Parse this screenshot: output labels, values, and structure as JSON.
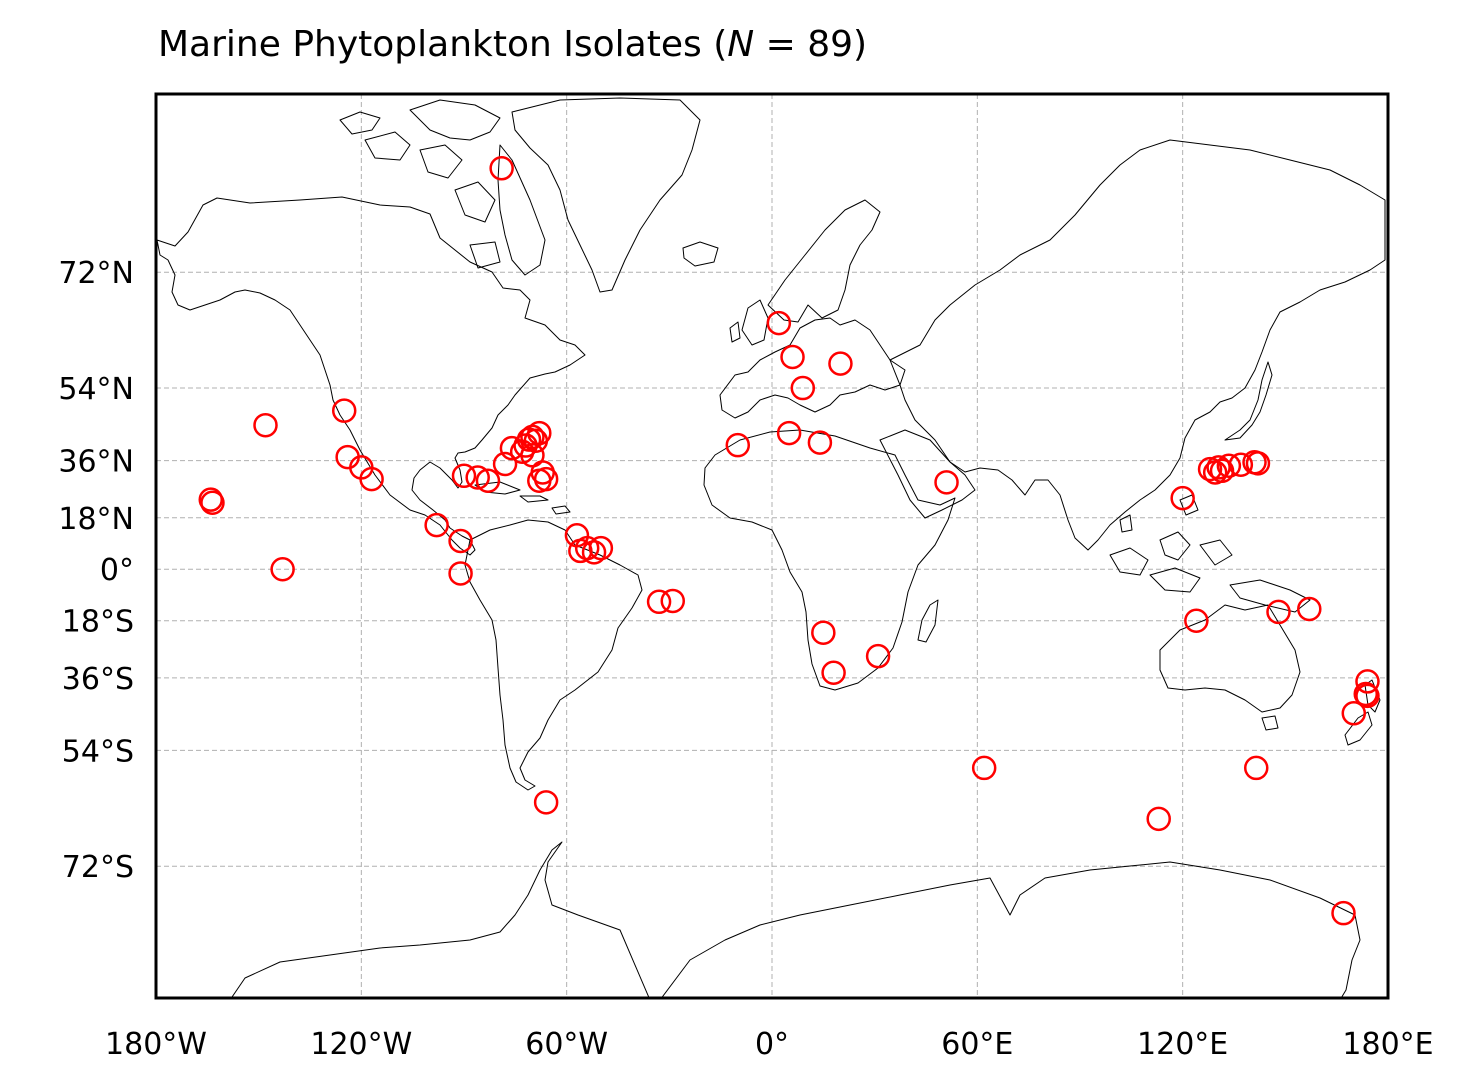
{
  "title": {
    "prefix": "Marine Phytoplankton Isolates (",
    "n_symbol": "N",
    "n_relation": " = 89)"
  },
  "chart_data": {
    "type": "scatter",
    "projection": "Mercator",
    "marker": "hollow circle",
    "marker_color": "#ff0000",
    "grid": true,
    "xlim": [
      -180,
      180
    ],
    "ylim": [
      -82,
      84
    ],
    "x_ticks": [
      -180,
      -120,
      -60,
      0,
      60,
      120,
      180
    ],
    "x_tick_labels": [
      "180°W",
      "120°W",
      "60°W",
      "0°",
      "60°E",
      "120°E",
      "180°E"
    ],
    "y_ticks": [
      72,
      54,
      36,
      18,
      0,
      -18,
      -36,
      -54,
      -72
    ],
    "y_tick_labels": [
      "72°N",
      "54°N",
      "36°N",
      "18°N",
      "0°",
      "18°S",
      "36°S",
      "54°S",
      "72°S"
    ],
    "points": [
      {
        "lon": -79,
        "lat": 80.5
      },
      {
        "lon": 2,
        "lat": 65.5
      },
      {
        "lon": 6,
        "lat": 60
      },
      {
        "lon": 9,
        "lat": 54
      },
      {
        "lon": 20,
        "lat": 58.8
      },
      {
        "lon": -125,
        "lat": 49
      },
      {
        "lon": -148,
        "lat": 45.5
      },
      {
        "lon": -124,
        "lat": 37
      },
      {
        "lon": -120,
        "lat": 34
      },
      {
        "lon": -117,
        "lat": 30.5
      },
      {
        "lon": -164,
        "lat": 24
      },
      {
        "lon": -163.5,
        "lat": 23
      },
      {
        "lon": -143,
        "lat": 0
      },
      {
        "lon": -90,
        "lat": 31.5
      },
      {
        "lon": -86,
        "lat": 31
      },
      {
        "lon": -83,
        "lat": 30
      },
      {
        "lon": -78,
        "lat": 35
      },
      {
        "lon": -76,
        "lat": 39.5
      },
      {
        "lon": -73,
        "lat": 38.5
      },
      {
        "lon": -72,
        "lat": 40.2
      },
      {
        "lon": -71,
        "lat": 41.8
      },
      {
        "lon": -70,
        "lat": 42.5
      },
      {
        "lon": -69,
        "lat": 41.5
      },
      {
        "lon": -68,
        "lat": 43.5
      },
      {
        "lon": -70,
        "lat": 37.5
      },
      {
        "lon": -67,
        "lat": 32.5
      },
      {
        "lon": -68,
        "lat": 30
      },
      {
        "lon": -66,
        "lat": 30.5
      },
      {
        "lon": -98,
        "lat": 15.5
      },
      {
        "lon": -91,
        "lat": 10
      },
      {
        "lon": -91,
        "lat": -1.5
      },
      {
        "lon": -57,
        "lat": 12
      },
      {
        "lon": -56,
        "lat": 6.5
      },
      {
        "lon": -54,
        "lat": 7.5
      },
      {
        "lon": -52,
        "lat": 6
      },
      {
        "lon": -50,
        "lat": 7.5
      },
      {
        "lon": -33,
        "lat": -11.5
      },
      {
        "lon": -29,
        "lat": -11.2
      },
      {
        "lon": -66,
        "lat": -63.5
      },
      {
        "lon": -10,
        "lat": 40.3
      },
      {
        "lon": 5,
        "lat": 43.5
      },
      {
        "lon": 14,
        "lat": 41
      },
      {
        "lon": 15,
        "lat": -22
      },
      {
        "lon": 18,
        "lat": -34.5
      },
      {
        "lon": 31,
        "lat": -29.5
      },
      {
        "lon": 51,
        "lat": 29.5
      },
      {
        "lon": 62,
        "lat": -57.5
      },
      {
        "lon": 120,
        "lat": 24.5
      },
      {
        "lon": 128,
        "lat": 33.5
      },
      {
        "lon": 129.5,
        "lat": 32.5
      },
      {
        "lon": 130.5,
        "lat": 34
      },
      {
        "lon": 131.5,
        "lat": 33
      },
      {
        "lon": 133.5,
        "lat": 34.5
      },
      {
        "lon": 137,
        "lat": 34.8
      },
      {
        "lon": 141,
        "lat": 35.5
      },
      {
        "lon": 142,
        "lat": 35.2
      },
      {
        "lon": 124,
        "lat": -18
      },
      {
        "lon": 148,
        "lat": -15
      },
      {
        "lon": 157,
        "lat": -14
      },
      {
        "lon": 113,
        "lat": -66
      },
      {
        "lon": 141.5,
        "lat": -57.5
      },
      {
        "lon": 174,
        "lat": -37
      },
      {
        "lon": 173.5,
        "lat": -40.5
      },
      {
        "lon": 174,
        "lat": -41
      },
      {
        "lon": 170,
        "lat": -45.5
      },
      {
        "lon": 167,
        "lat": -76.5
      }
    ]
  }
}
